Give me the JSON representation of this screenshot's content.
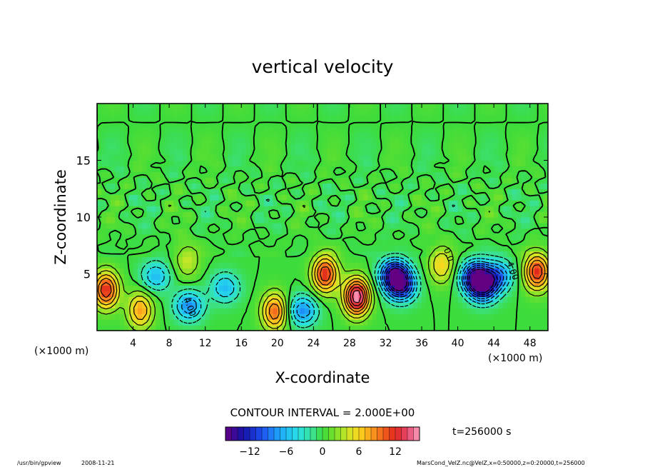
{
  "chart_data": {
    "type": "heatmap",
    "title": "vertical velocity",
    "xlabel": "X-coordinate",
    "ylabel": "Z-coordinate",
    "x_unit_left": "(×1000 m)",
    "x_unit_right": "(×1000 m)",
    "xlim": [
      0,
      50
    ],
    "ylim": [
      0,
      20
    ],
    "x_ticks": [
      4,
      8,
      12,
      16,
      20,
      24,
      28,
      32,
      36,
      40,
      44,
      48
    ],
    "y_ticks": [
      5,
      10,
      15
    ],
    "contour_interval_text": "CONTOUR INTERVAL = 2.000E+00",
    "time_label": "t=256000 s",
    "colorbar": {
      "min": -16,
      "max": 16,
      "step": 1,
      "ticks": [
        -12,
        -6,
        0,
        6,
        12
      ],
      "tick_labels": [
        "−12",
        "−6",
        "0",
        "6",
        "12"
      ]
    },
    "contour_labels": [
      {
        "text": "4.00",
        "x": 10,
        "z": 2
      },
      {
        "text": "0.0",
        "x": 38.7,
        "z": 6.6
      },
      {
        "text": "4.00",
        "x": 45.8,
        "z": 5.2
      }
    ],
    "features": [
      {
        "kind": "updraft",
        "x": 1.0,
        "z": 3.6,
        "peak": 12
      },
      {
        "kind": "updraft",
        "x": 4.8,
        "z": 1.8,
        "peak": 8
      },
      {
        "kind": "updraft",
        "x": 10.0,
        "z": 6.2,
        "peak": 4
      },
      {
        "kind": "updraft",
        "x": 19.7,
        "z": 1.7,
        "peak": 10
      },
      {
        "kind": "updraft",
        "x": 25.3,
        "z": 5.0,
        "peak": 12
      },
      {
        "kind": "updraft",
        "x": 28.8,
        "z": 3.0,
        "peak": 16
      },
      {
        "kind": "updraft",
        "x": 38.2,
        "z": 5.8,
        "peak": 6
      },
      {
        "kind": "updraft",
        "x": 48.8,
        "z": 5.2,
        "peak": 12
      },
      {
        "kind": "downdraft",
        "x": 6.5,
        "z": 4.8,
        "peak": -6
      },
      {
        "kind": "downdraft",
        "x": 10.2,
        "z": 2.2,
        "peak": -8
      },
      {
        "kind": "downdraft",
        "x": 14.2,
        "z": 3.8,
        "peak": -6
      },
      {
        "kind": "downdraft",
        "x": 22.8,
        "z": 1.8,
        "peak": -8
      },
      {
        "kind": "downdraft",
        "x": 33.0,
        "z": 5.0,
        "peak": -14
      },
      {
        "kind": "downdraft",
        "x": 33.7,
        "z": 3.9,
        "peak": -12
      },
      {
        "kind": "downdraft",
        "x": 42.0,
        "z": 4.8,
        "peak": -14
      },
      {
        "kind": "downdraft",
        "x": 42.8,
        "z": 3.8,
        "peak": -12
      },
      {
        "kind": "downdraft",
        "x": 44.5,
        "z": 4.9,
        "peak": -8
      }
    ]
  },
  "footer": {
    "program": "/usr/bin/gpview",
    "date": "2008-11-21",
    "source": "MarsCond_VelZ.nc@VelZ,x=0:50000,z=0:20000,t=256000"
  }
}
